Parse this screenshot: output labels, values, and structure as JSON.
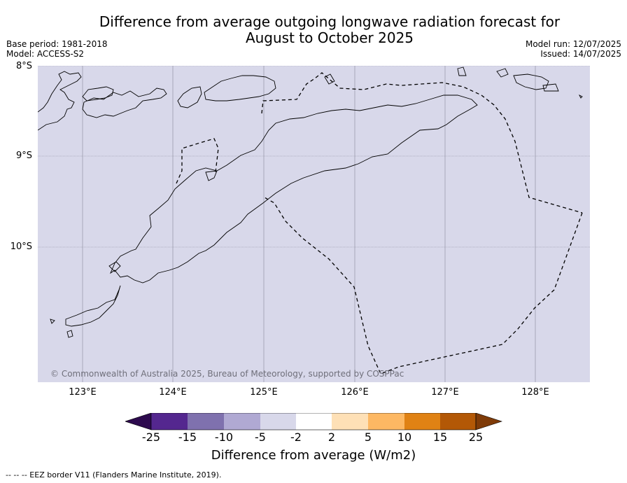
{
  "title_line1": "Difference from average outgoing longwave radiation forecast for",
  "title_line2": "August to October 2025",
  "base_period": "Base period: 1981-2018",
  "model": "Model: ACCESS-S2",
  "model_run": "Model run: 12/07/2025",
  "issued": "Issued: 14/07/2025",
  "lat_labels": [
    "8°S",
    "9°S",
    "10°S"
  ],
  "lon_labels": [
    "123°E",
    "124°E",
    "125°E",
    "126°E",
    "127°E",
    "128°E"
  ],
  "copyright": "© Commonwealth of Australia 2025, Bureau of Meteorology, supported by COSPPac",
  "colorbar": {
    "ticks": [
      "-25",
      "-15",
      "-10",
      "-5",
      "-2",
      "2",
      "5",
      "10",
      "15",
      "25"
    ],
    "colors": [
      "#2d0a4e",
      "#54278f",
      "#7f71ae",
      "#b0a9d3",
      "#d8d8ea",
      "#ffffff",
      "#fee0b6",
      "#fdb863",
      "#e08214",
      "#b35806",
      "#7f3b08"
    ],
    "label": "Difference from average (W/m2)"
  },
  "map_fill": "#d8d8ea",
  "footnote": "-- -- -- EEZ border V11 (Flanders Marine Institute, 2019)."
}
